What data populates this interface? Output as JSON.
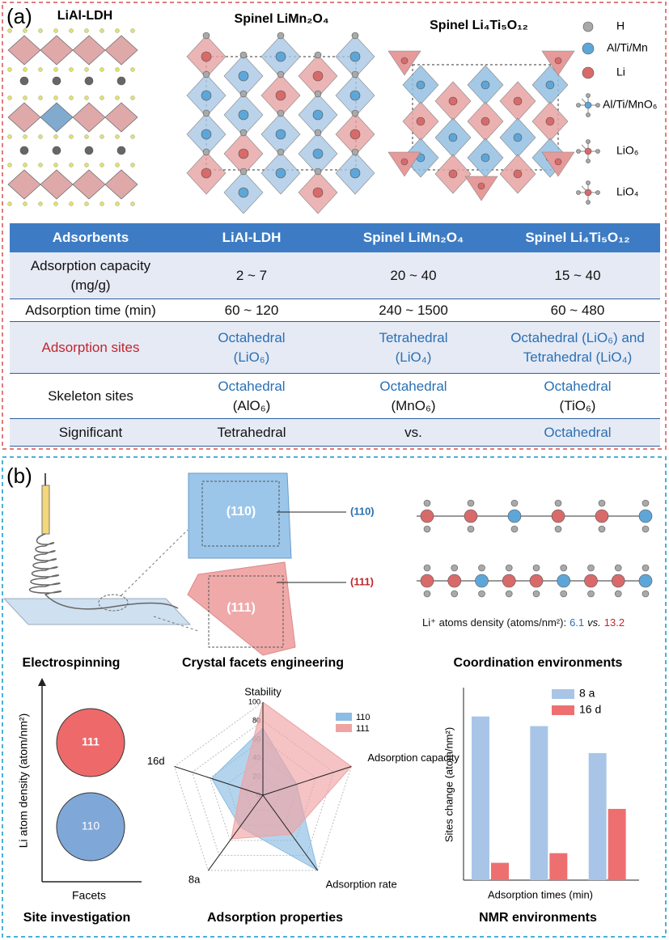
{
  "panel_a": {
    "label": "(a)",
    "structure_titles": [
      "LiAl-LDH",
      "Spinel LiMn₂O₄",
      "Spinel Li₄Ti₅O₁₂"
    ],
    "legend": [
      "H",
      "Al/Ti/Mn",
      "Li",
      "Al/Ti/MnO₆",
      "LiO₆",
      "LiO₄"
    ],
    "table": {
      "header": [
        "Adsorbents",
        "LiAl-LDH",
        "Spinel LiMn₂O₄",
        "Spinel Li₄Ti₅O₁₂"
      ],
      "rows": [
        [
          [
            "Adsorption capacity",
            "(mg/g)"
          ],
          [
            "2 ~ 7"
          ],
          [
            "20 ~ 40"
          ],
          [
            "15 ~ 40"
          ]
        ],
        [
          [
            "Adsorption time (min)"
          ],
          [
            "60 ~ 120"
          ],
          [
            "240 ~ 1500"
          ],
          [
            "60 ~ 480"
          ]
        ],
        [
          [
            "Adsorption sites"
          ],
          [
            "Octahedral",
            "(LiO₆)"
          ],
          [
            "Tetrahedral",
            "(LiO₄)"
          ],
          [
            "Octahedral (LiO₆) and",
            "Tetrahedral (LiO₄)"
          ]
        ],
        [
          [
            "Skeleton sites"
          ],
          [
            "Octahedral",
            "(AlO₆)"
          ],
          [
            "Octahedral",
            "(MnO₆)"
          ],
          [
            "Octahedral",
            "(TiO₆)"
          ]
        ],
        [
          [
            "Significant"
          ],
          [
            "Tetrahedral"
          ],
          [
            "vs."
          ],
          [
            "Octahedral"
          ]
        ]
      ]
    }
  },
  "panel_b": {
    "label": "(b)",
    "facet_labels": [
      "(110)",
      "(111)"
    ],
    "density": {
      "text": "Li⁺ atoms density (atoms/nm²):",
      "value_110": 6.1,
      "separator": "vs.",
      "value_111": 13.2
    },
    "captions": [
      "Electrospinning",
      "Crystal facets engineering",
      "Coordination environments",
      "Site investigation",
      "Adsorption properties",
      "NMR environments"
    ],
    "site_investigation": {
      "y_label": "Li atom density (atom/nm²)",
      "x_label": "Facets",
      "circles": [
        "111",
        "110"
      ]
    },
    "radar": {
      "type": "radar",
      "axes": [
        "Stability",
        "Adsorption capacity",
        "Adsorption rate",
        "8a",
        "16d"
      ],
      "rlim": [
        0,
        100
      ],
      "rticks": [
        0,
        20,
        40,
        60,
        80,
        100
      ],
      "series": [
        {
          "name": "110",
          "color": "#8cbde3",
          "values": [
            72,
            38,
            100,
            42,
            58
          ]
        },
        {
          "name": "111",
          "color": "#efa3a3",
          "values": [
            100,
            100,
            52,
            58,
            25
          ]
        }
      ]
    },
    "bar": {
      "type": "bar",
      "categories": [
        null,
        null,
        null
      ],
      "ylim": [
        0,
        100
      ],
      "y_label": "Sites change (atom/nm²)",
      "x_label": "Adsorption times (min)",
      "series": [
        {
          "name": "8 a",
          "color": "#a8c5e7",
          "values": [
            85,
            80,
            66
          ]
        },
        {
          "name": "16 d",
          "color": "#ee6f70",
          "values": [
            9,
            14,
            37
          ]
        }
      ]
    }
  }
}
